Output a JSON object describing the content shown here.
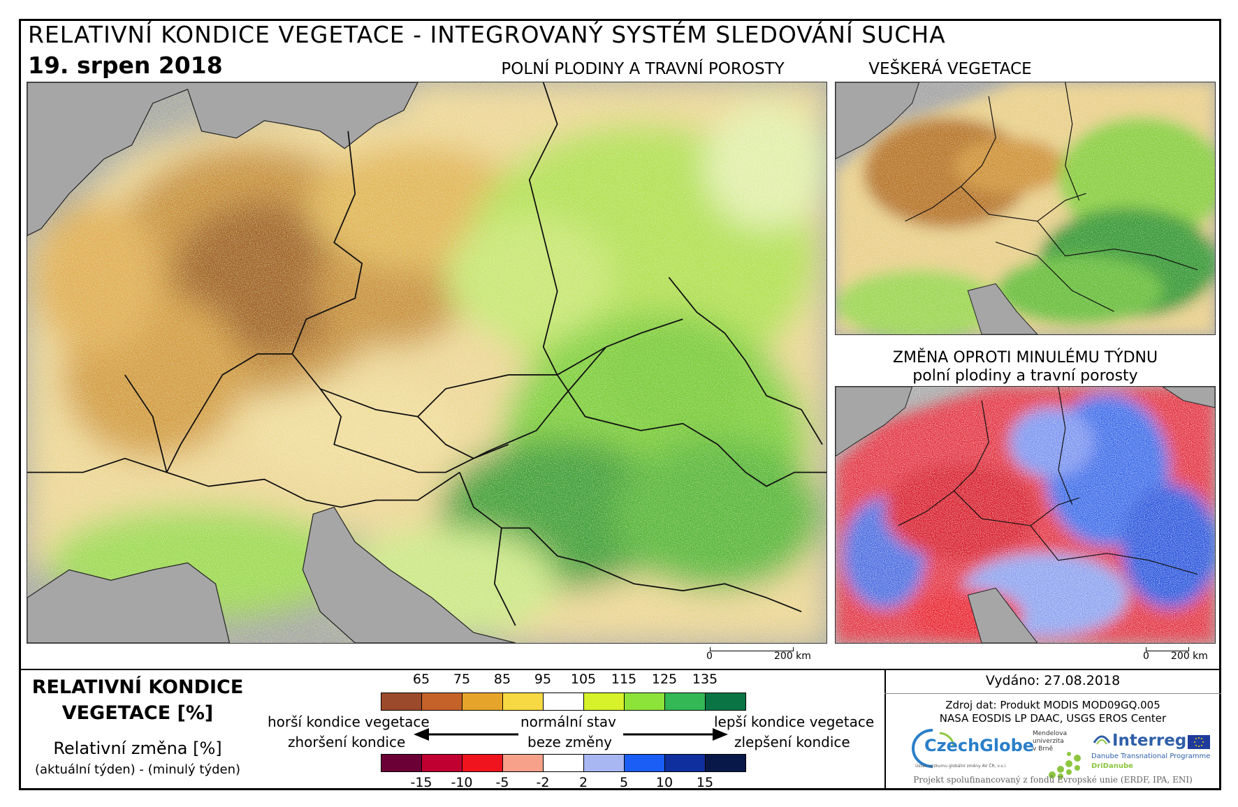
{
  "header": {
    "title": "RELATIVNÍ KONDICE VEGETACE - INTEGROVANÝ SYSTÉM SLEDOVÁNÍ SUCHA",
    "date": "19. srpen 2018"
  },
  "maps": {
    "main": {
      "label": "POLNÍ PLODINY A TRAVNÍ POROSTY",
      "scale": [
        "0",
        "200 km"
      ]
    },
    "all_vegetation": {
      "label": "VEŠKERÁ VEGETACE"
    },
    "change": {
      "label_line1": "ZMĚNA OPROTI MINULÉMU TÝDNU",
      "label_line2": "polní plodiny a travní porosty",
      "scale": [
        "0",
        "200 km"
      ]
    }
  },
  "legend": {
    "title_line1": "RELATIVNÍ KONDICE",
    "title_line2": "VEGETACE [%]",
    "sub_line1": "Relativní změna [%]",
    "sub_line2": "(aktuální týden) - (minulý týden)",
    "condition_ticks": [
      "65",
      "75",
      "85",
      "95",
      "105",
      "115",
      "125",
      "135"
    ],
    "condition_colors": [
      "#9b4a2b",
      "#c4622a",
      "#e6a52a",
      "#f7d943",
      "#ffffff",
      "#d7f22a",
      "#8ee33a",
      "#33b855",
      "#0a7444"
    ],
    "change_ticks": [
      "-15",
      "-10",
      "-5",
      "-2",
      "2",
      "5",
      "10",
      "15"
    ],
    "change_colors": [
      "#6b0036",
      "#c00030",
      "#f0141e",
      "#f7a08a",
      "#ffffff",
      "#a8b6f2",
      "#1a5ef5",
      "#0f2f9e",
      "#081848"
    ],
    "worse_condition": "horší kondice vegetace",
    "worsening": "zhoršení kondice",
    "normal_state": "normální stav",
    "no_change": "beze změny",
    "better_condition": "lepší kondice vegetace",
    "improving": "zlepšení kondice"
  },
  "info": {
    "issued": "Vydáno: 27.08.2018",
    "source_line1": "Zdroj dat: Produkt MODIS MOD09GQ.005",
    "source_line2": "NASA EOSDIS LP DAAC, USGS EROS Center",
    "czechglobe": "CzechGlobe",
    "czechglobe_sub": "Ústav výzkumu globální změny AV ČR, v.v.i.",
    "mendel_line1": "Mendelova",
    "mendel_line2": "univerzita",
    "mendel_line3": "v Brně",
    "interreg": "Interreg",
    "interreg_sub": "Danube Transnational Programme",
    "dridanube": "DriDanube",
    "funding": "Projekt spolufinancovaný z fondů Evropské unie (ERDF, IPA, ENI)"
  }
}
